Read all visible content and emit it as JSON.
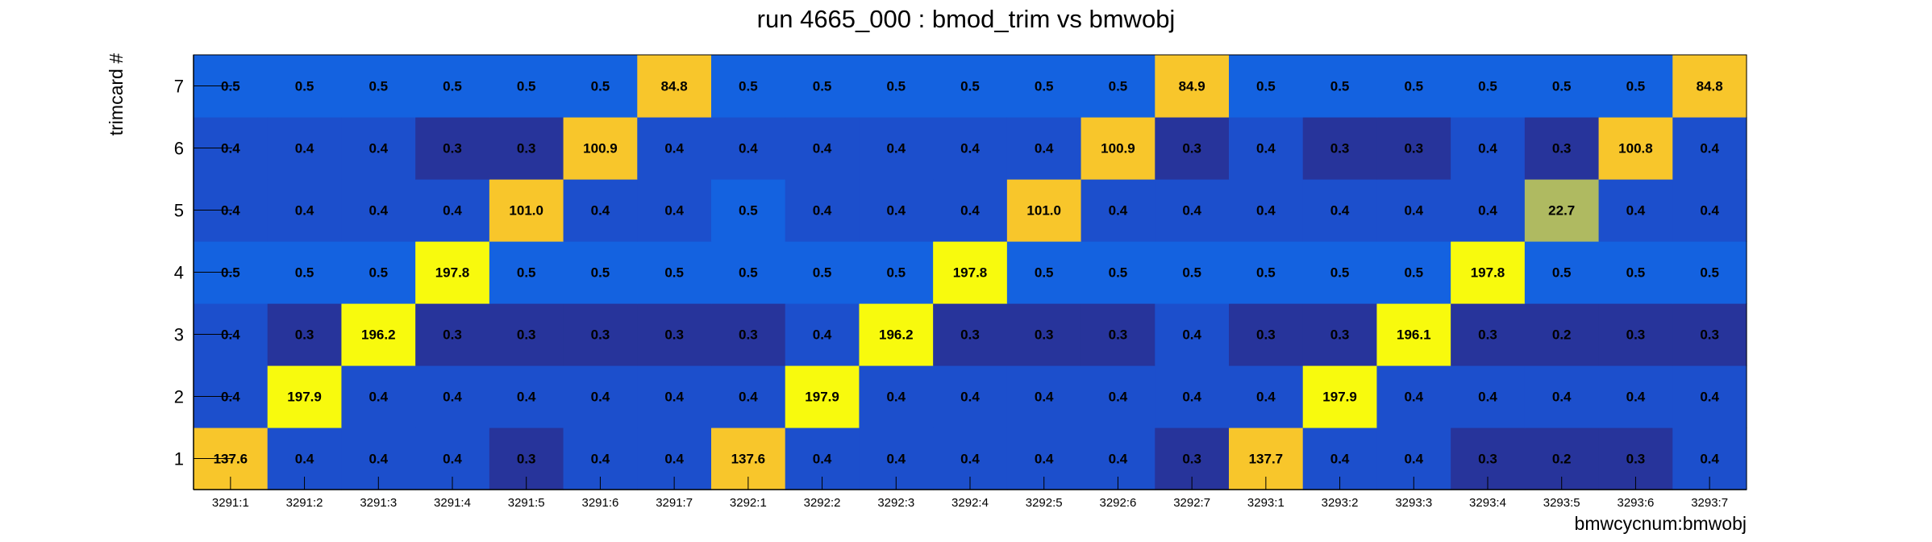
{
  "chart_data": {
    "type": "heatmap",
    "title": "run 4665_000 : bmod_trim vs bmwobj",
    "xlabel": "bmwcycnum:bmwobj",
    "ylabel": "trimcard #",
    "x": [
      "3291:1",
      "3291:2",
      "3291:3",
      "3291:4",
      "3291:5",
      "3291:6",
      "3291:7",
      "3292:1",
      "3292:2",
      "3292:3",
      "3292:4",
      "3292:5",
      "3292:6",
      "3292:7",
      "3293:1",
      "3293:2",
      "3293:3",
      "3293:4",
      "3293:5",
      "3293:6",
      "3293:7"
    ],
    "y": [
      "1",
      "2",
      "3",
      "4",
      "5",
      "6",
      "7"
    ],
    "values": [
      [
        137.6,
        0.4,
        0.4,
        0.4,
        0.3,
        0.4,
        0.4,
        137.6,
        0.4,
        0.4,
        0.4,
        0.4,
        0.4,
        0.3,
        137.7,
        0.4,
        0.4,
        0.3,
        0.2,
        0.3,
        0.4
      ],
      [
        0.4,
        197.9,
        0.4,
        0.4,
        0.4,
        0.4,
        0.4,
        0.4,
        197.9,
        0.4,
        0.4,
        0.4,
        0.4,
        0.4,
        0.4,
        197.9,
        0.4,
        0.4,
        0.4,
        0.4,
        0.4
      ],
      [
        0.4,
        0.3,
        196.2,
        0.3,
        0.3,
        0.3,
        0.3,
        0.3,
        0.4,
        196.2,
        0.3,
        0.3,
        0.3,
        0.4,
        0.3,
        0.3,
        196.1,
        0.3,
        0.2,
        0.3,
        0.3
      ],
      [
        0.5,
        0.5,
        0.5,
        197.8,
        0.5,
        0.5,
        0.5,
        0.5,
        0.5,
        0.5,
        197.8,
        0.5,
        0.5,
        0.5,
        0.5,
        0.5,
        0.5,
        197.8,
        0.5,
        0.5,
        0.5
      ],
      [
        0.4,
        0.4,
        0.4,
        0.4,
        101.0,
        0.4,
        0.4,
        0.5,
        0.4,
        0.4,
        0.4,
        101.0,
        0.4,
        0.4,
        0.4,
        0.4,
        0.4,
        0.4,
        22.7,
        0.4,
        0.4
      ],
      [
        0.4,
        0.4,
        0.4,
        0.3,
        0.3,
        100.9,
        0.4,
        0.4,
        0.4,
        0.4,
        0.4,
        0.4,
        100.9,
        0.3,
        0.4,
        0.3,
        0.3,
        0.4,
        0.3,
        100.8,
        0.4
      ],
      [
        0.5,
        0.5,
        0.5,
        0.5,
        0.5,
        0.5,
        84.8,
        0.5,
        0.5,
        0.5,
        0.5,
        0.5,
        0.5,
        84.9,
        0.5,
        0.5,
        0.5,
        0.5,
        0.5,
        0.5,
        84.8
      ]
    ],
    "value_format": "0.0",
    "colors": {
      "dark": "#27349b",
      "low": "#1c4fcc",
      "mid": "#1462e0",
      "olive": "#afba61",
      "gold": "#f8c62b",
      "yellow": "#f8fa0d"
    },
    "grid": false,
    "legend": "none"
  }
}
